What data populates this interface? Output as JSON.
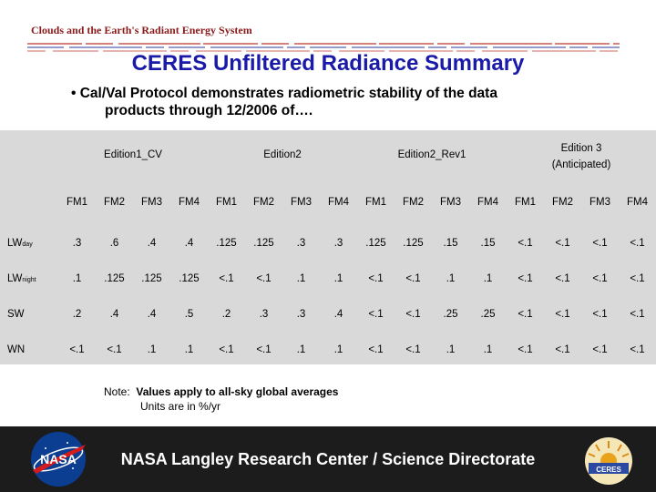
{
  "header": {
    "title": "Clouds and the Earth's Radiant Energy System"
  },
  "slide": {
    "title": "CERES Unfiltered Radiance Summary",
    "bullet_line1": "• Cal/Val Protocol demonstrates radiometric stability of the data",
    "bullet_line2": "products through 12/2006 of…."
  },
  "table": {
    "editions": [
      {
        "label": "Edition1_CV",
        "sub": ""
      },
      {
        "label": "Edition2",
        "sub": ""
      },
      {
        "label": "Edition2_Rev1",
        "sub": ""
      },
      {
        "label": "Edition 3",
        "sub": "(Anticipated)"
      }
    ],
    "fm_headers": [
      "FM1",
      "FM2",
      "FM3",
      "FM4",
      "FM1",
      "FM2",
      "FM3",
      "FM4",
      "FM1",
      "FM2",
      "FM3",
      "FM4",
      "FM1",
      "FM2",
      "FM3",
      "FM4"
    ],
    "rows": [
      {
        "label": "LW",
        "sub": "day",
        "values": [
          ".3",
          ".6",
          ".4",
          ".4",
          ".125",
          ".125",
          ".3",
          ".3",
          ".125",
          ".125",
          ".15",
          ".15",
          "<.1",
          "<.1",
          "<.1",
          "<.1"
        ]
      },
      {
        "label": "LW",
        "sub": "night",
        "values": [
          ".1",
          ".125",
          ".125",
          ".125",
          "<.1",
          "<.1",
          ".1",
          ".1",
          "<.1",
          "<.1",
          ".1",
          ".1",
          "<.1",
          "<.1",
          "<.1",
          "<.1"
        ]
      },
      {
        "label": "SW",
        "sub": "",
        "values": [
          ".2",
          ".4",
          ".4",
          ".5",
          ".2",
          ".3",
          ".3",
          ".4",
          "<.1",
          "<.1",
          ".25",
          ".25",
          "<.1",
          "<.1",
          "<.1",
          "<.1"
        ]
      },
      {
        "label": "WN",
        "sub": "",
        "values": [
          "<.1",
          "<.1",
          ".1",
          ".1",
          "<.1",
          "<.1",
          ".1",
          ".1",
          "<.1",
          "<.1",
          ".1",
          ".1",
          "<.1",
          "<.1",
          "<.1",
          "<.1"
        ]
      }
    ]
  },
  "note": {
    "prefix": "Note:",
    "line1": "Values apply to all-sky global averages",
    "line2": "Units are in %/yr"
  },
  "footer": {
    "text": "NASA Langley Research Center / Science Directorate",
    "nasa_logo_icon": "nasa-meatball-logo",
    "ceres_logo_icon": "ceres-sun-logo"
  }
}
